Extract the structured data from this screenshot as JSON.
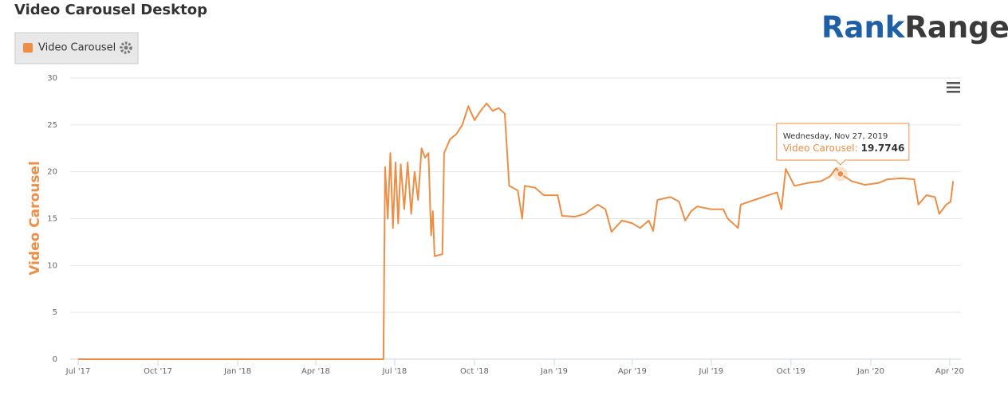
{
  "chart_data": {
    "type": "line",
    "title": "Video Carousel Desktop",
    "logo_parts": [
      "Rank",
      "Ranger"
    ],
    "y_label": "Video Carousel",
    "series": [
      {
        "name": "Video Carousel",
        "color": "#ee8e45",
        "x": [
          "2017-07-01",
          "2018-06-18",
          "2018-06-20",
          "2018-06-23",
          "2018-06-26",
          "2018-06-29",
          "2018-07-02",
          "2018-07-05",
          "2018-07-08",
          "2018-07-12",
          "2018-07-16",
          "2018-07-20",
          "2018-07-24",
          "2018-07-28",
          "2018-08-01",
          "2018-08-05",
          "2018-08-09",
          "2018-08-12",
          "2018-08-14",
          "2018-08-16",
          "2018-08-25",
          "2018-08-27",
          "2018-09-03",
          "2018-09-10",
          "2018-09-17",
          "2018-09-24",
          "2018-10-01",
          "2018-10-08",
          "2018-10-15",
          "2018-10-22",
          "2018-10-29",
          "2018-11-05",
          "2018-11-10",
          "2018-11-20",
          "2018-11-25",
          "2018-11-28",
          "2018-12-10",
          "2018-12-20",
          "2019-01-05",
          "2019-01-10",
          "2019-01-25",
          "2019-02-05",
          "2019-02-20",
          "2019-03-01",
          "2019-03-08",
          "2019-03-20",
          "2019-04-01",
          "2019-04-10",
          "2019-04-20",
          "2019-04-25",
          "2019-04-30",
          "2019-05-15",
          "2019-05-25",
          "2019-06-01",
          "2019-06-08",
          "2019-06-15",
          "2019-07-01",
          "2019-07-15",
          "2019-07-20",
          "2019-08-01",
          "2019-08-04",
          "2019-08-20",
          "2019-09-05",
          "2019-09-15",
          "2019-09-20",
          "2019-09-25",
          "2019-10-05",
          "2019-10-20",
          "2019-11-05",
          "2019-11-15",
          "2019-11-22",
          "2019-11-27",
          "2019-12-10",
          "2019-12-25",
          "2020-01-10",
          "2020-01-20",
          "2020-02-05",
          "2020-02-20",
          "2020-02-25",
          "2020-03-05",
          "2020-03-15",
          "2020-03-20",
          "2020-03-28",
          "2020-04-02",
          "2020-04-05"
        ],
        "values": [
          0,
          0,
          20.5,
          15,
          22,
          14,
          21,
          14.5,
          20.8,
          16,
          21,
          15.5,
          20,
          17,
          22.5,
          21.5,
          22,
          13.2,
          15.8,
          11,
          11.2,
          22,
          23.5,
          24,
          25,
          27,
          25.5,
          26.5,
          27.3,
          26.5,
          26.8,
          26.2,
          18.5,
          18,
          15,
          18.5,
          18.3,
          17.5,
          17.5,
          15.3,
          15.2,
          15.5,
          16.5,
          16,
          13.6,
          14.8,
          14.5,
          14,
          14.8,
          13.7,
          17,
          17.3,
          16.8,
          14.8,
          15.8,
          16.3,
          16,
          16,
          15,
          14,
          16.5,
          17,
          17.5,
          17.8,
          16,
          20.3,
          18.5,
          18.8,
          19,
          19.5,
          20.4,
          19.7746,
          19,
          18.6,
          18.8,
          19.2,
          19.3,
          19.2,
          16.5,
          17.5,
          17.3,
          15.5,
          16.5,
          16.8,
          19
        ]
      }
    ],
    "xlim": [
      "2017-07-01",
      "2020-04-14"
    ],
    "xticks": [
      {
        "value": "2017-07-01",
        "label": "Jul '17"
      },
      {
        "value": "2017-10-01",
        "label": "Oct '17"
      },
      {
        "value": "2018-01-01",
        "label": "Jan '18"
      },
      {
        "value": "2018-04-01",
        "label": "Apr '18"
      },
      {
        "value": "2018-07-01",
        "label": "Jul '18"
      },
      {
        "value": "2018-10-01",
        "label": "Oct '18"
      },
      {
        "value": "2019-01-01",
        "label": "Jan '19"
      },
      {
        "value": "2019-04-01",
        "label": "Apr '19"
      },
      {
        "value": "2019-07-01",
        "label": "Jul '19"
      },
      {
        "value": "2019-10-01",
        "label": "Oct '19"
      },
      {
        "value": "2020-01-01",
        "label": "Jan '20"
      },
      {
        "value": "2020-04-01",
        "label": "Apr '20"
      }
    ],
    "ylim": [
      0,
      30
    ],
    "yticks": [
      0,
      5,
      10,
      15,
      20,
      25,
      30
    ],
    "grid": true,
    "tooltip": {
      "date": "Wednesday, Nov 27, 2019",
      "label": "Video Carousel:",
      "point": 71
    }
  }
}
